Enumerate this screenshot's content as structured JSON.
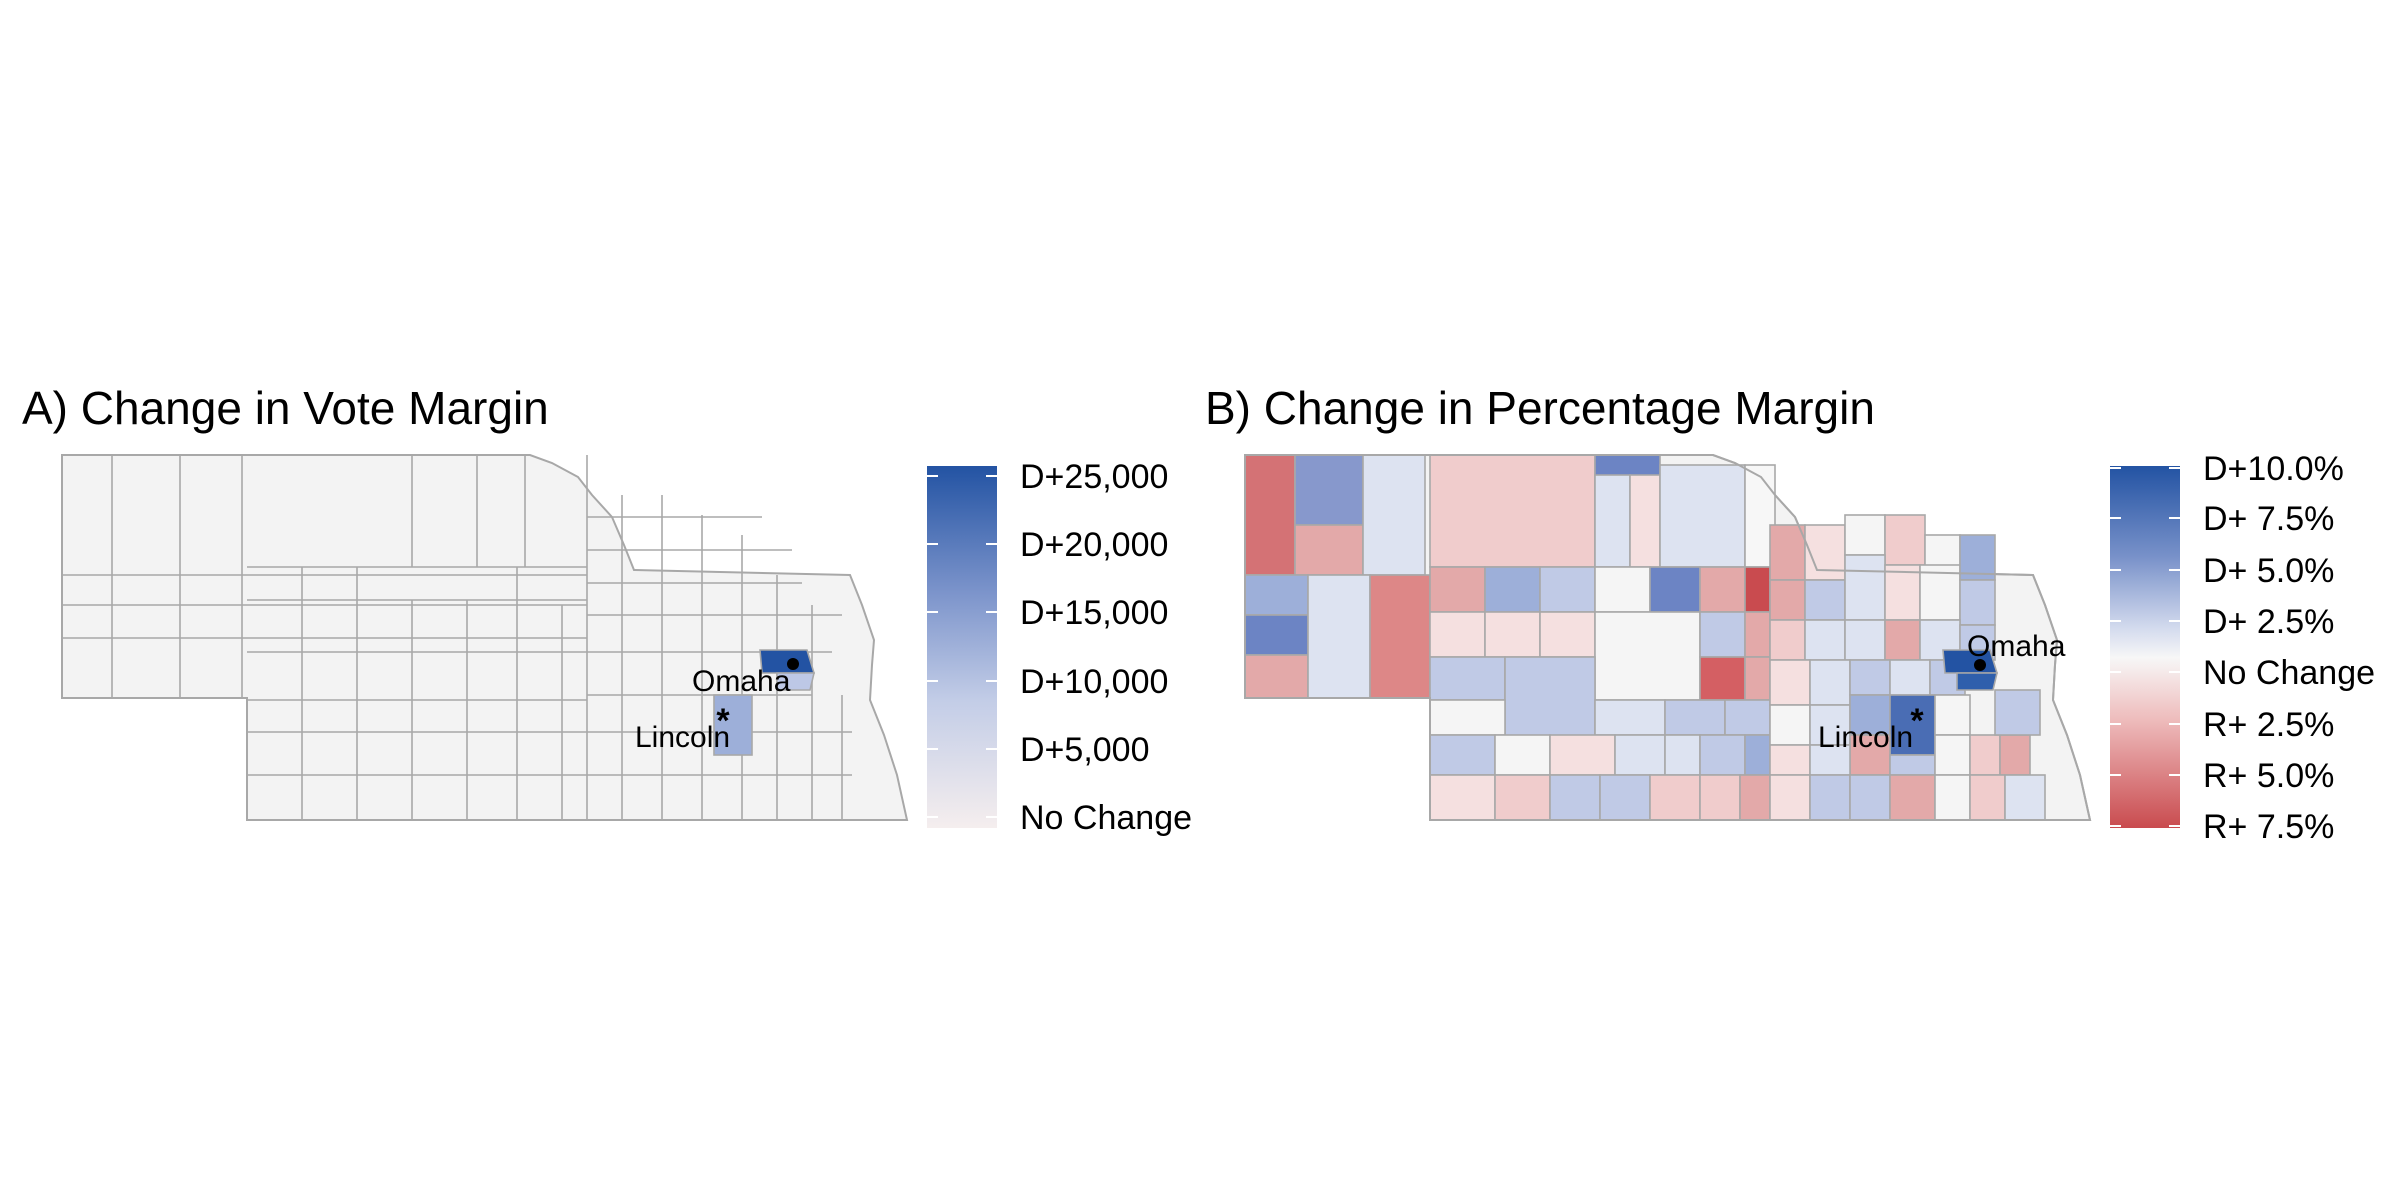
{
  "panels": [
    {
      "title": "A) Change in Vote Margin",
      "legend": {
        "labels": [
          "D+25,000",
          "D+20,000",
          "D+15,000",
          "D+10,000",
          "D+5,000",
          "No Change"
        ],
        "colors": [
          "#2353a3",
          "#5f7ec0",
          "#9dafd9",
          "#dde3f1",
          "#f3eeee"
        ]
      },
      "cities": {
        "omaha": "Omaha",
        "lincoln": "Lincoln"
      }
    },
    {
      "title": "B) Change in Percentage Margin",
      "legend": {
        "labels": [
          "D+10.0%",
          "D+ 7.5%",
          "D+ 5.0%",
          "D+ 2.5%",
          "No Change",
          "R+ 2.5%",
          "R+ 5.0%",
          "R+ 7.5%"
        ],
        "colors": [
          "#2353a3",
          "#5f7ec0",
          "#9dafd9",
          "#dde3f1",
          "#f5f5f5",
          "#f0cccc",
          "#e09595",
          "#c94b4f"
        ]
      },
      "cities": {
        "omaha": "Omaha",
        "lincoln": "Lincoln"
      }
    }
  ],
  "colors": {
    "county_border": "#a8a8a8",
    "neutral_fill": "#f3f3f3",
    "dem_strong": "#2353a3",
    "rep_strong": "#c94b4f"
  }
}
